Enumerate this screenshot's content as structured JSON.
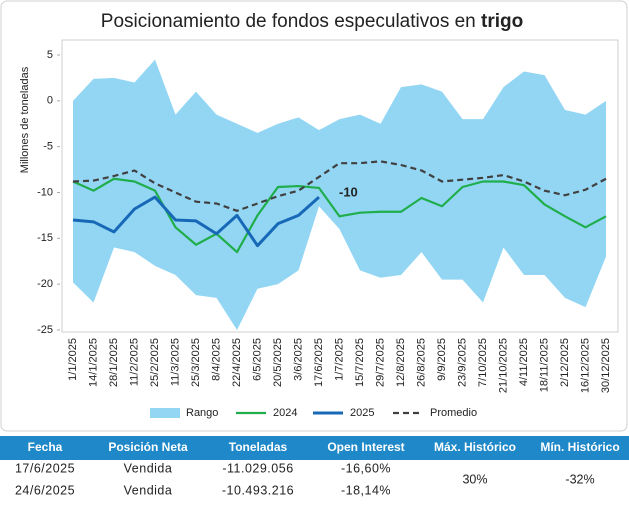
{
  "chart_data": {
    "type": "line",
    "title": "Posicionamiento de fondos especulativos en",
    "title_highlight": "trigo",
    "y_label": "Millones de toneladas",
    "annotation": "-10",
    "categories": [
      "1/1/2025",
      "14/1/2025",
      "28/1/2025",
      "11/2/2025",
      "25/2/2025",
      "11/3/2025",
      "25/3/2025",
      "8/4/2025",
      "22/4/2025",
      "6/5/2025",
      "20/5/2025",
      "3/6/2025",
      "17/6/2025",
      "1/7/2025",
      "15/7/2025",
      "29/7/2025",
      "12/8/2025",
      "26/8/2025",
      "9/9/2025",
      "23/9/2025",
      "7/10/2025",
      "21/10/2025",
      "4/11/2025",
      "18/11/2025",
      "2/12/2025",
      "16/12/2025",
      "30/12/2025"
    ],
    "range": {
      "name": "Rango",
      "color": "#93d6f3",
      "high": [
        0,
        2.4,
        2.5,
        2,
        4.5,
        -1.5,
        1,
        -1.5,
        -2.5,
        -3.5,
        -2.5,
        -1.8,
        -3.2,
        -2,
        -1.5,
        -2.5,
        1.5,
        1.8,
        1,
        -2,
        -2,
        1.5,
        3.2,
        2.8,
        -1,
        -1.5,
        0
      ],
      "low": [
        -19.8,
        -22,
        -16,
        -16.5,
        -18,
        -19,
        -21.2,
        -21.5,
        -25,
        -20.5,
        -20,
        -18.5,
        -11.5,
        -14,
        -18.5,
        -19.3,
        -19,
        -16.5,
        -19.5,
        -19.5,
        -22,
        -16,
        -19,
        -19,
        -21.5,
        -22.5,
        -17
      ]
    },
    "series": [
      {
        "name": "2024",
        "color": "#1fae4b",
        "dash": false,
        "width": 2.2,
        "values": [
          -8.8,
          -9.8,
          -8.5,
          -8.8,
          -9.8,
          -13.8,
          -15.7,
          -14.5,
          -16.5,
          -12.5,
          -9.4,
          -9.3,
          -9.5,
          -12.6,
          -12.2,
          -12.1,
          -12.1,
          -10.6,
          -11.5,
          -9.4,
          -8.8,
          -8.8,
          -9.2,
          -11.3,
          -12.6,
          -13.8,
          -12.6
        ]
      },
      {
        "name": "2025",
        "color": "#1769b8",
        "dash": false,
        "width": 3,
        "values": [
          -13.0,
          -13.2,
          -14.3,
          -11.8,
          -10.5,
          -13.0,
          -13.1,
          -14.5,
          -12.5,
          -15.8,
          -13.4,
          -12.5,
          -10.5,
          null,
          null,
          null,
          null,
          null,
          null,
          null,
          null,
          null,
          null,
          null,
          null,
          null,
          null
        ]
      },
      {
        "name": "Promedio",
        "color": "#404040",
        "dash": true,
        "width": 2.2,
        "values": [
          -8.8,
          -8.7,
          -8.2,
          -7.6,
          -9.0,
          -10.0,
          -11.0,
          -11.2,
          -12.0,
          -11.2,
          -10.4,
          -9.8,
          -8.3,
          -6.8,
          -6.8,
          -6.6,
          -7.0,
          -7.6,
          -8.8,
          -8.6,
          -8.4,
          -8.1,
          -8.8,
          -9.8,
          -10.3,
          -9.7,
          -8.5
        ]
      }
    ],
    "ylim": [
      -25,
      5
    ],
    "yticks": [
      -25,
      -20,
      -15,
      -10,
      -5,
      0,
      5
    ],
    "grid": false
  },
  "table": {
    "headers": [
      "Fecha",
      "Posición Neta",
      "Toneladas",
      "Open Interest",
      "Máx. Histórico",
      "Mín. Histórico"
    ],
    "rows": [
      [
        "17/6/2025",
        "Vendida",
        "-11.029.056",
        "-16,60%"
      ],
      [
        "24/6/2025",
        "Vendida",
        "-10.493.216",
        "-18,14%"
      ]
    ],
    "max_historico": "30%",
    "min_historico": "-32%"
  }
}
